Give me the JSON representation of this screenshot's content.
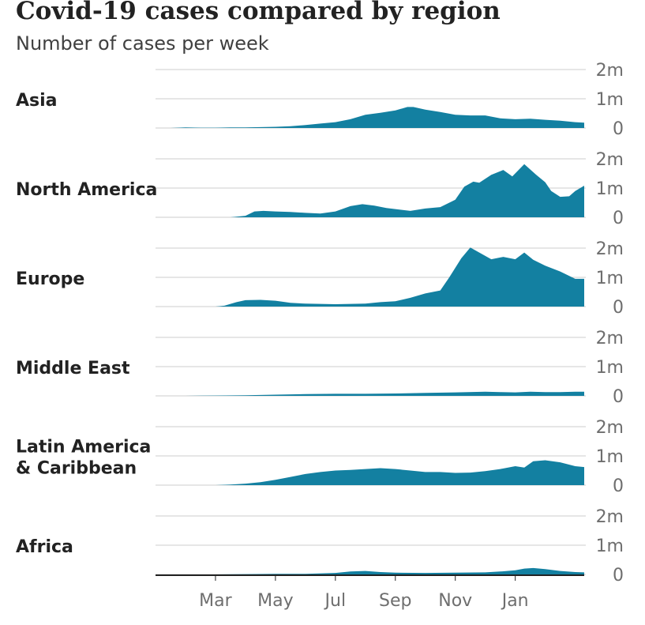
{
  "title": "Covid-19 cases compared by region",
  "subtitle": "Number of cases per week",
  "colors": {
    "area": "#1380a1",
    "grid": "#cccccc",
    "baseline": "#222222"
  },
  "chart_data": {
    "type": "area",
    "title": "Covid-19 cases compared by region",
    "subtitle": "Number of cases per week",
    "x_unit": "month index (0 = start of January 2020)",
    "xlim": [
      0,
      14.3
    ],
    "x_ticks": [
      {
        "x": 2,
        "label": "Mar"
      },
      {
        "x": 4,
        "label": "May"
      },
      {
        "x": 6,
        "label": "Jul"
      },
      {
        "x": 8,
        "label": "Sep"
      },
      {
        "x": 10,
        "label": "Nov"
      },
      {
        "x": 12,
        "label": "Jan"
      }
    ],
    "y_ticks": [
      {
        "value": 0,
        "label": "0"
      },
      {
        "value": 1,
        "label": "1m"
      },
      {
        "value": 2,
        "label": "2m"
      }
    ],
    "ylim": [
      0,
      2
    ],
    "y_unit": "millions of cases per week",
    "grid": true,
    "panels": [
      {
        "name": "Asia",
        "label_lines": [
          "Asia"
        ],
        "points": [
          [
            0,
            0
          ],
          [
            0.5,
            0
          ],
          [
            1,
            0.02
          ],
          [
            1.5,
            0.01
          ],
          [
            2,
            0.01
          ],
          [
            2.5,
            0.02
          ],
          [
            3,
            0.02
          ],
          [
            3.5,
            0.03
          ],
          [
            4,
            0.04
          ],
          [
            4.5,
            0.06
          ],
          [
            5,
            0.1
          ],
          [
            5.5,
            0.15
          ],
          [
            6,
            0.2
          ],
          [
            6.5,
            0.3
          ],
          [
            7,
            0.45
          ],
          [
            7.5,
            0.52
          ],
          [
            8,
            0.6
          ],
          [
            8.4,
            0.72
          ],
          [
            8.6,
            0.72
          ],
          [
            9,
            0.63
          ],
          [
            9.5,
            0.55
          ],
          [
            10,
            0.45
          ],
          [
            10.5,
            0.43
          ],
          [
            11,
            0.43
          ],
          [
            11.5,
            0.33
          ],
          [
            12,
            0.3
          ],
          [
            12.5,
            0.32
          ],
          [
            13,
            0.28
          ],
          [
            13.5,
            0.25
          ],
          [
            14,
            0.2
          ],
          [
            14.3,
            0.18
          ]
        ]
      },
      {
        "name": "North America",
        "label_lines": [
          "North America"
        ],
        "points": [
          [
            0,
            0
          ],
          [
            1,
            0
          ],
          [
            2,
            0
          ],
          [
            2.5,
            0
          ],
          [
            3,
            0.05
          ],
          [
            3.3,
            0.2
          ],
          [
            3.6,
            0.22
          ],
          [
            4,
            0.2
          ],
          [
            4.5,
            0.18
          ],
          [
            5,
            0.15
          ],
          [
            5.5,
            0.13
          ],
          [
            6,
            0.2
          ],
          [
            6.5,
            0.38
          ],
          [
            6.9,
            0.45
          ],
          [
            7.3,
            0.4
          ],
          [
            7.7,
            0.32
          ],
          [
            8,
            0.28
          ],
          [
            8.5,
            0.22
          ],
          [
            9,
            0.3
          ],
          [
            9.5,
            0.35
          ],
          [
            10,
            0.6
          ],
          [
            10.3,
            1.05
          ],
          [
            10.6,
            1.22
          ],
          [
            10.8,
            1.18
          ],
          [
            11.2,
            1.45
          ],
          [
            11.6,
            1.62
          ],
          [
            11.9,
            1.4
          ],
          [
            12.3,
            1.82
          ],
          [
            12.7,
            1.45
          ],
          [
            13,
            1.2
          ],
          [
            13.2,
            0.9
          ],
          [
            13.5,
            0.7
          ],
          [
            13.8,
            0.72
          ],
          [
            14,
            0.9
          ],
          [
            14.3,
            1.08
          ]
        ]
      },
      {
        "name": "Europe",
        "label_lines": [
          "Europe"
        ],
        "points": [
          [
            0,
            0
          ],
          [
            1,
            0
          ],
          [
            2,
            0
          ],
          [
            2.3,
            0.03
          ],
          [
            2.7,
            0.15
          ],
          [
            3,
            0.22
          ],
          [
            3.5,
            0.23
          ],
          [
            4,
            0.2
          ],
          [
            4.5,
            0.13
          ],
          [
            5,
            0.1
          ],
          [
            6,
            0.08
          ],
          [
            7,
            0.1
          ],
          [
            7.5,
            0.15
          ],
          [
            8,
            0.18
          ],
          [
            8.5,
            0.3
          ],
          [
            9,
            0.45
          ],
          [
            9.5,
            0.55
          ],
          [
            9.8,
            1.0
          ],
          [
            10.2,
            1.65
          ],
          [
            10.5,
            2.02
          ],
          [
            10.8,
            1.85
          ],
          [
            11.2,
            1.62
          ],
          [
            11.6,
            1.7
          ],
          [
            12,
            1.62
          ],
          [
            12.3,
            1.85
          ],
          [
            12.6,
            1.6
          ],
          [
            13,
            1.4
          ],
          [
            13.5,
            1.2
          ],
          [
            14,
            0.95
          ],
          [
            14.3,
            0.95
          ]
        ]
      },
      {
        "name": "Middle East",
        "label_lines": [
          "Middle East"
        ],
        "points": [
          [
            0,
            0
          ],
          [
            1,
            0
          ],
          [
            2,
            0.01
          ],
          [
            3,
            0.02
          ],
          [
            4,
            0.04
          ],
          [
            5,
            0.06
          ],
          [
            6,
            0.07
          ],
          [
            7,
            0.07
          ],
          [
            8,
            0.08
          ],
          [
            9,
            0.1
          ],
          [
            10,
            0.12
          ],
          [
            11,
            0.14
          ],
          [
            11.5,
            0.13
          ],
          [
            12,
            0.12
          ],
          [
            12.5,
            0.14
          ],
          [
            13,
            0.13
          ],
          [
            13.5,
            0.13
          ],
          [
            14,
            0.14
          ],
          [
            14.3,
            0.14
          ]
        ]
      },
      {
        "name": "Latin America & Caribbean",
        "label_lines": [
          "Latin America",
          "& Caribbean"
        ],
        "points": [
          [
            0,
            0
          ],
          [
            1,
            0
          ],
          [
            2,
            0
          ],
          [
            2.5,
            0.02
          ],
          [
            3,
            0.05
          ],
          [
            3.5,
            0.1
          ],
          [
            4,
            0.18
          ],
          [
            4.5,
            0.28
          ],
          [
            5,
            0.38
          ],
          [
            5.5,
            0.45
          ],
          [
            6,
            0.5
          ],
          [
            6.5,
            0.52
          ],
          [
            7,
            0.55
          ],
          [
            7.5,
            0.58
          ],
          [
            8,
            0.55
          ],
          [
            8.5,
            0.5
          ],
          [
            9,
            0.45
          ],
          [
            9.5,
            0.45
          ],
          [
            10,
            0.42
          ],
          [
            10.5,
            0.43
          ],
          [
            11,
            0.48
          ],
          [
            11.5,
            0.55
          ],
          [
            12,
            0.65
          ],
          [
            12.3,
            0.6
          ],
          [
            12.6,
            0.82
          ],
          [
            13,
            0.85
          ],
          [
            13.5,
            0.78
          ],
          [
            14,
            0.65
          ],
          [
            14.3,
            0.62
          ]
        ]
      },
      {
        "name": "Africa",
        "label_lines": [
          "Africa"
        ],
        "points": [
          [
            0,
            0
          ],
          [
            1,
            0
          ],
          [
            2,
            0
          ],
          [
            3,
            0.01
          ],
          [
            4,
            0.02
          ],
          [
            5,
            0.02
          ],
          [
            6,
            0.05
          ],
          [
            6.5,
            0.1
          ],
          [
            7,
            0.12
          ],
          [
            7.5,
            0.08
          ],
          [
            8,
            0.06
          ],
          [
            9,
            0.05
          ],
          [
            10,
            0.06
          ],
          [
            11,
            0.07
          ],
          [
            11.5,
            0.1
          ],
          [
            12,
            0.14
          ],
          [
            12.3,
            0.2
          ],
          [
            12.6,
            0.22
          ],
          [
            13,
            0.18
          ],
          [
            13.5,
            0.12
          ],
          [
            14,
            0.08
          ],
          [
            14.3,
            0.07
          ]
        ]
      }
    ]
  }
}
